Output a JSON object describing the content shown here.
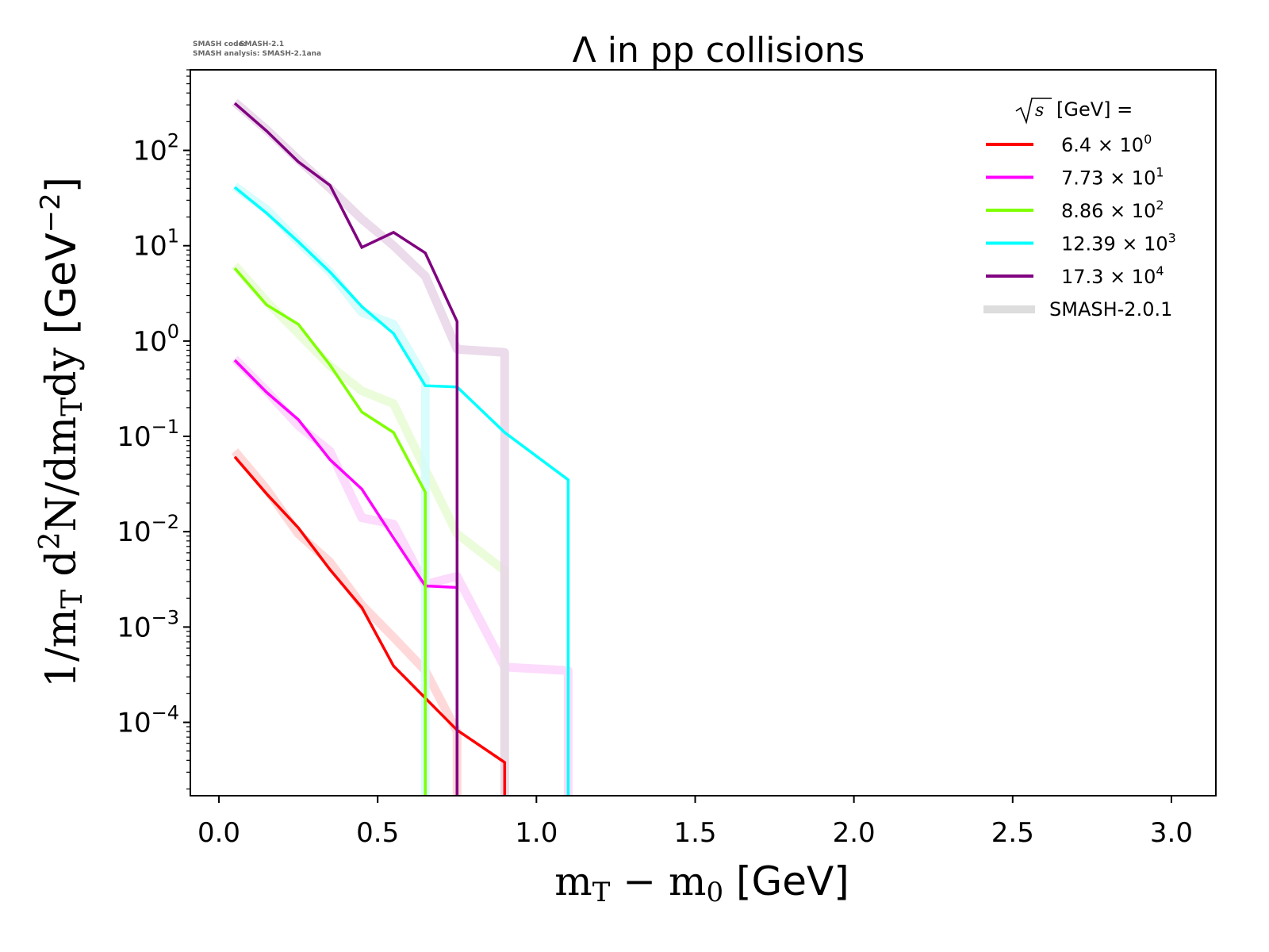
{
  "meta": {
    "code_label": "SMASH code:",
    "code_value": "SMASH-2.1",
    "analysis_label": "SMASH analysis:",
    "analysis_value": "SMASH-2.1ana"
  },
  "chart_data": {
    "type": "line",
    "title": "Λ in pp collisions",
    "xlabel": {
      "main": "m",
      "sub": "T",
      "op": " − m",
      "sub2": "0",
      "unit": " [GeV]"
    },
    "ylabel": {
      "part1": "1/m",
      "sub1": "T",
      "part2": " d",
      "sup": "2",
      "part3": "N/dm",
      "sub2": "T",
      "part4": "dy",
      "unit": " [GeV",
      "unit_sup": "−2",
      "unit_end": "]"
    },
    "xlim": [
      -0.09,
      3.14
    ],
    "ylim": [
      1.7e-05,
      700
    ],
    "yscale": "log",
    "x_ticks": [
      {
        "value": 0.0,
        "label": "0.0"
      },
      {
        "value": 0.5,
        "label": "0.5"
      },
      {
        "value": 1.0,
        "label": "1.0"
      },
      {
        "value": 1.5,
        "label": "1.5"
      },
      {
        "value": 2.0,
        "label": "2.0"
      },
      {
        "value": 2.5,
        "label": "2.5"
      },
      {
        "value": 3.0,
        "label": "3.0"
      }
    ],
    "y_ticks": [
      {
        "exp": 2,
        "base": "10",
        "sup": "2"
      },
      {
        "exp": 1,
        "base": "10",
        "sup": "1"
      },
      {
        "exp": 0,
        "base": "10",
        "sup": "0"
      },
      {
        "exp": -1,
        "base": "10",
        "sup": "−1"
      },
      {
        "exp": -2,
        "base": "10",
        "sup": "−2"
      },
      {
        "exp": -3,
        "base": "10",
        "sup": "−3"
      },
      {
        "exp": -4,
        "base": "10",
        "sup": "−4"
      }
    ],
    "legend": {
      "placement": "top-right",
      "title_sqrt": "s",
      "title_rest": " [GeV] =",
      "reference_label": "SMASH-2.0.1",
      "reference_color": "#dddddd"
    },
    "series": [
      {
        "name": "6.4 × 10^0",
        "label_mant": "6.4 × 10",
        "label_exp": "0",
        "color": "#ff0000",
        "ref_color": "#ffd2d2",
        "x": [
          0.05,
          0.15,
          0.25,
          0.35,
          0.45,
          0.55,
          0.65,
          0.75,
          0.9,
          0.9
        ],
        "y": [
          0.061,
          0.025,
          0.011,
          0.004,
          0.0016,
          0.00039,
          0.00018,
          8.3e-05,
          3.8e-05,
          1e-06
        ],
        "ref_x": [
          0.05,
          0.15,
          0.25,
          0.35,
          0.45,
          0.55,
          0.65,
          0.75,
          0.75
        ],
        "ref_y": [
          0.07,
          0.028,
          0.0095,
          0.0048,
          0.0017,
          0.00078,
          0.00035,
          8e-05,
          1e-06
        ]
      },
      {
        "name": "7.73 × 10^1",
        "label_mant": "7.73 × 10",
        "label_exp": "1",
        "color": "#ff00ff",
        "ref_color": "#fcd5fc",
        "x": [
          0.05,
          0.15,
          0.25,
          0.35,
          0.45,
          0.55,
          0.65,
          0.75,
          0.75
        ],
        "y": [
          0.63,
          0.29,
          0.15,
          0.057,
          0.028,
          0.0086,
          0.0027,
          0.0026,
          1e-06
        ],
        "ref_x": [
          0.05,
          0.15,
          0.25,
          0.35,
          0.45,
          0.55,
          0.65,
          0.75,
          0.9,
          1.1,
          1.1
        ],
        "ref_y": [
          0.65,
          0.3,
          0.13,
          0.07,
          0.014,
          0.012,
          0.0028,
          0.0034,
          0.00038,
          0.00035,
          1e-06
        ]
      },
      {
        "name": "8.86 × 10^2",
        "label_mant": "8.86 × 10",
        "label_exp": "2",
        "color": "#7fff00",
        "ref_color": "#e8fcd5",
        "x": [
          0.05,
          0.15,
          0.25,
          0.35,
          0.45,
          0.55,
          0.65,
          0.65
        ],
        "y": [
          5.8,
          2.4,
          1.5,
          0.56,
          0.18,
          0.11,
          0.026,
          1e-06
        ],
        "ref_x": [
          0.05,
          0.15,
          0.25,
          0.35,
          0.45,
          0.55,
          0.65,
          0.75,
          0.9,
          0.9
        ],
        "ref_y": [
          6.2,
          2.6,
          1.2,
          0.55,
          0.3,
          0.22,
          0.045,
          0.0095,
          0.0039,
          1e-06
        ]
      },
      {
        "name": "12.39 × 10^3",
        "label_mant": "12.39 × 10",
        "label_exp": "3",
        "color": "#00ffff",
        "ref_color": "#d2fcfc",
        "x": [
          0.05,
          0.15,
          0.25,
          0.35,
          0.45,
          0.55,
          0.65,
          0.75,
          0.9,
          1.1,
          1.1
        ],
        "y": [
          41,
          22,
          11,
          5.3,
          2.3,
          1.2,
          0.34,
          0.33,
          0.11,
          0.035,
          1e-06
        ],
        "ref_x": [
          0.05,
          0.15,
          0.25,
          0.35,
          0.45,
          0.55,
          0.65,
          0.65
        ],
        "ref_y": [
          42,
          24,
          11,
          5.3,
          2.0,
          1.5,
          0.4,
          1e-06
        ]
      },
      {
        "name": "17.3 × 10^4",
        "label_mant": "17.3 × 10",
        "label_exp": "4",
        "color": "#800080",
        "ref_color": "#e8d5e8",
        "x": [
          0.05,
          0.15,
          0.25,
          0.35,
          0.45,
          0.55,
          0.65,
          0.75,
          0.75
        ],
        "y": [
          312,
          160,
          76,
          43,
          9.6,
          13.8,
          8.4,
          1.6,
          1e-06
        ],
        "ref_x": [
          0.05,
          0.15,
          0.25,
          0.35,
          0.45,
          0.55,
          0.65,
          0.75,
          0.9,
          0.9
        ],
        "ref_y": [
          320,
          165,
          80,
          40,
          19,
          10,
          4.8,
          0.82,
          0.76,
          1e-06
        ]
      }
    ]
  }
}
